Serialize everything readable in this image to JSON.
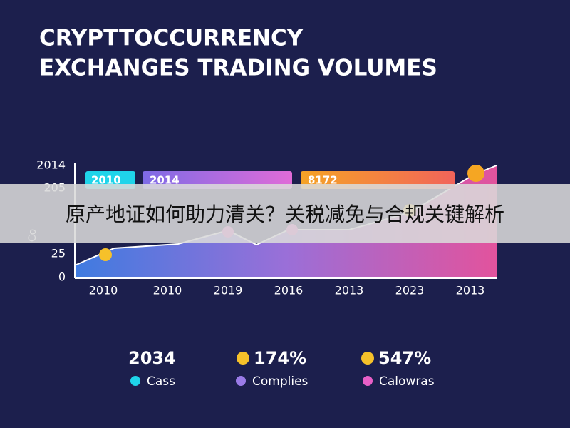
{
  "title": {
    "line1": "CRYPTTOCCURRENCY",
    "line2": "EXCHANGES TRADING VOLUMES"
  },
  "y_axis": {
    "labels": [
      "2014",
      "205",
      "25",
      "0"
    ],
    "side_label": "Co"
  },
  "boxes": [
    "2010",
    "2014",
    "8172"
  ],
  "x_axis": {
    "labels": [
      "2010",
      "2010",
      "2019",
      "2016",
      "2013",
      "2023",
      "2013"
    ]
  },
  "stats": [
    "2034",
    "174%",
    "547%"
  ],
  "legend": [
    "Cass",
    "Complies",
    "Calowras"
  ],
  "banner": "原产地证如何助力清关？关税减免与合规关键解析"
}
